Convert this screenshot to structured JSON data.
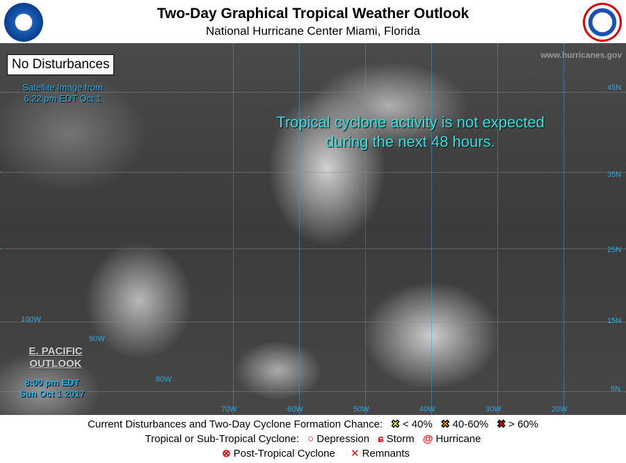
{
  "header": {
    "title": "Two-Day Graphical Tropical Weather Outlook",
    "subtitle": "National Hurricane Center  Miami, Florida",
    "left_logo": "noaa-logo",
    "right_logo": "national-weather-service-logo"
  },
  "map": {
    "status_box": "No Disturbances",
    "satellite_line1": "Satellite Image from",
    "satellite_line2": "6:22 pm EDT Oct 1",
    "message_line1": "Tropical cyclone activity is not expected",
    "message_line2": "during the next 48 hours.",
    "website": "www.hurricanes.gov",
    "epac_line1": "E. PACIFIC",
    "epac_line2": "OUTLOOK",
    "time_line1": "8:00 pm EDT",
    "time_line2": "Sun Oct 1 2017",
    "lat_labels": [
      "45N",
      "35N",
      "25N",
      "15N",
      "5N"
    ],
    "lon_labels": [
      "100W",
      "90W",
      "80W",
      "70W",
      "60W",
      "50W",
      "40W",
      "30W",
      "20W"
    ]
  },
  "legend": {
    "row1_label": "Current Disturbances and Two-Day Cyclone Formation Chance:",
    "low": "< 40%",
    "medium": "40-60%",
    "high": "> 60%",
    "row2_label": "Tropical or Sub-Tropical Cyclone:",
    "depression": "Depression",
    "storm": "Storm",
    "hurricane": "Hurricane",
    "post_tropical": "Post-Tropical Cyclone",
    "remnants": "Remnants",
    "colors": {
      "low": "#ffff00",
      "medium": "#ff9900",
      "high": "#ff0000",
      "cyclone": "#ff0000"
    }
  }
}
